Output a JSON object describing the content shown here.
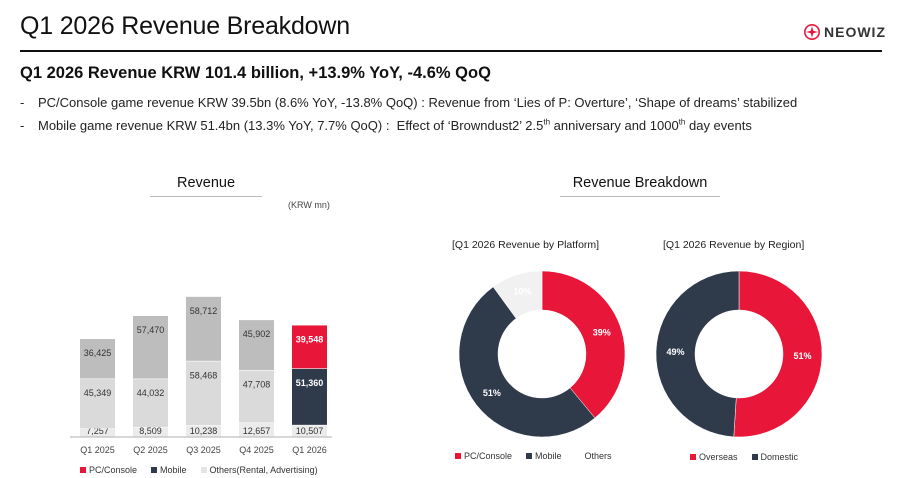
{
  "page": {
    "title": "Q1 2026 Revenue Breakdown",
    "logo_text": "NEOWIZ",
    "headline": "Q1 2026 Revenue KRW 101.4 billion, +13.9% YoY, -4.6% QoQ",
    "bullets": [
      {
        "dash": "-",
        "pre": "PC/Console game revenue KRW 39.5bn (8.6% YoY, -13.8% QoQ) : Revenue from ‘Lies of P: Overture’, ‘Shape of dreams’ stabilized",
        "sup1": "",
        "mid": "",
        "sup2": "",
        "post": ""
      },
      {
        "dash": "-",
        "pre": "Mobile game revenue KRW 51.4bn (13.3% YoY, 7.7% QoQ) :  Effect of ‘Browndust2’ 2.5",
        "sup1": "th",
        "mid": " anniversary and 1000",
        "sup2": "th",
        "post": " day events"
      }
    ]
  },
  "revenue_section": {
    "title": "Revenue",
    "unit": "(KRW mn)"
  },
  "breakdown_section": {
    "title": "Revenue Breakdown",
    "platform_title": "[Q1 2026 Revenue by Platform]",
    "region_title": "[Q1 2026 Revenue by Region]"
  },
  "colors": {
    "pc": "#e8173a",
    "mobile": "#2f3a4b",
    "others": "#ebebeb",
    "gray_top": "#bdbdbd",
    "gray_mid": "#dadada",
    "gray_bottom": "#ebebeb"
  },
  "chart_data": [
    {
      "type": "bar",
      "stacked": true,
      "categories": [
        "Q1 2025",
        "Q2 2025",
        "Q3 2025",
        "Q4 2025",
        "Q1 2026"
      ],
      "series": [
        {
          "name": "Others(Rental, Advertising)",
          "values": [
            7257,
            8509,
            10238,
            12657,
            10507
          ]
        },
        {
          "name": "Mobile",
          "values": [
            45349,
            44032,
            58468,
            47708,
            51360
          ]
        },
        {
          "name": "PC/Console",
          "values": [
            36425,
            57470,
            58712,
            45902,
            39548
          ]
        }
      ],
      "value_labels": [
        [
          "7,257",
          "8,509",
          "10,238",
          "12,657",
          "10,507"
        ],
        [
          "45,349",
          "44,032",
          "58,468",
          "47,708",
          "51,360"
        ],
        [
          "36,425",
          "57,470",
          "58,712",
          "45,902",
          "39,548"
        ]
      ],
      "legend": [
        "PC/Console",
        "Mobile",
        "Others(Rental, Advertising)"
      ],
      "ylim": [
        0,
        130000
      ]
    },
    {
      "type": "pie",
      "donut": true,
      "labels": [
        "PC/Console",
        "Mobile",
        "Others"
      ],
      "values": [
        39,
        51,
        10
      ],
      "value_labels": [
        "39%",
        "51%",
        "10%"
      ]
    },
    {
      "type": "pie",
      "donut": true,
      "labels": [
        "Overseas",
        "Domestic"
      ],
      "values": [
        51,
        49
      ],
      "value_labels": [
        "51%",
        "49%"
      ]
    }
  ]
}
